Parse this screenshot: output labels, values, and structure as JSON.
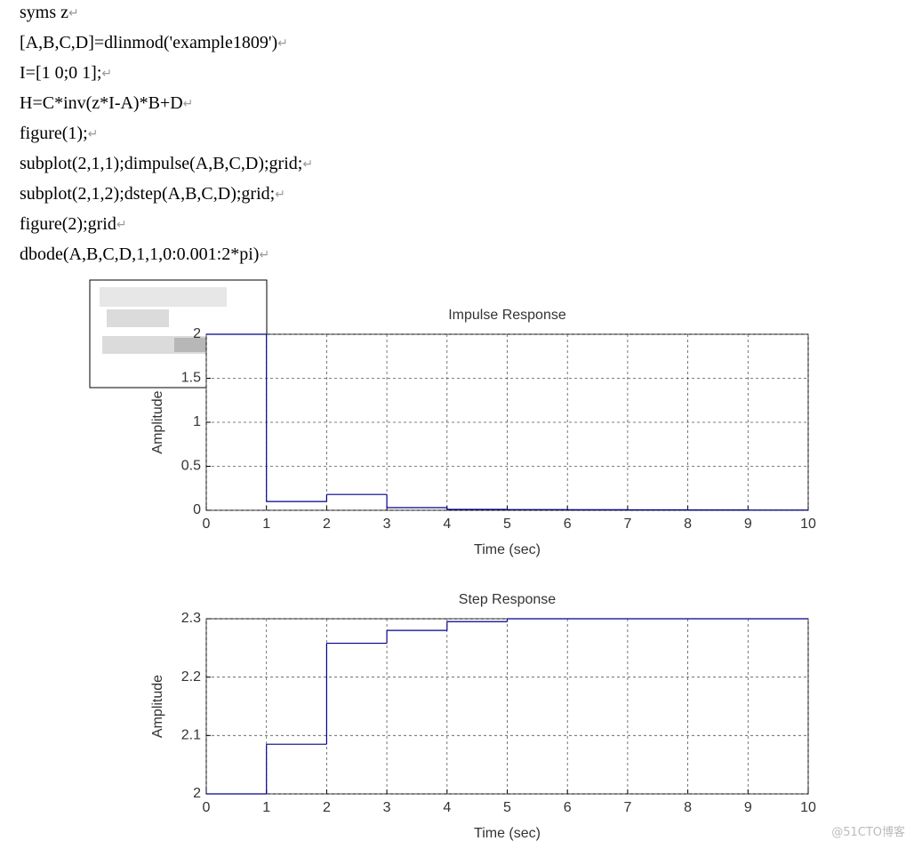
{
  "code_lines": [
    "syms z",
    "[A,B,C,D]=dlinmod('example1809')",
    "I=[1 0;0 1];",
    "H=C*inv(z*I-A)*B+D",
    "figure(1);",
    "subplot(2,1,1);dimpulse(A,B,C,D);grid;",
    "subplot(2,1,2);dstep(A,B,C,D);grid;",
    "figure(2);grid",
    "dbode(A,B,C,D,1,1,0:0.001:2*pi)"
  ],
  "return_mark": "↵",
  "watermark": "@51CTO博客",
  "chart_data": [
    {
      "type": "line",
      "step": "post",
      "title": "Impulse Response",
      "x_label": "Time (sec)",
      "y_label": "Amplitude",
      "x": [
        0,
        1,
        2,
        3,
        4,
        5,
        6,
        7,
        8,
        9
      ],
      "series": [
        {
          "color": "#00008b",
          "values": [
            2,
            0.1,
            0.18,
            0.03,
            0.01,
            0.008,
            0.006,
            0.005,
            0.004,
            0.003
          ]
        }
      ],
      "xlim": [
        0,
        10
      ],
      "xticks": [
        0,
        1,
        2,
        3,
        4,
        5,
        6,
        7,
        8,
        9,
        10
      ],
      "ylim": [
        0,
        2
      ],
      "yticks": [
        0,
        0.5,
        1,
        1.5,
        2
      ],
      "grid": true
    },
    {
      "type": "line",
      "step": "post",
      "title": "Step Response",
      "x_label": "Time (sec)",
      "y_label": "Amplitude",
      "x": [
        0,
        1,
        2,
        3,
        4,
        5,
        6,
        7,
        8,
        9
      ],
      "series": [
        {
          "color": "#00008b",
          "values": [
            2,
            2.085,
            2.258,
            2.28,
            2.295,
            2.3,
            2.3,
            2.3,
            2.3,
            2.3
          ]
        }
      ],
      "xlim": [
        0,
        10
      ],
      "xticks": [
        0,
        1,
        2,
        3,
        4,
        5,
        6,
        7,
        8,
        9,
        10
      ],
      "ylim": [
        2,
        2.3
      ],
      "yticks": [
        2,
        2.1,
        2.2,
        2.3
      ],
      "grid": true
    }
  ]
}
